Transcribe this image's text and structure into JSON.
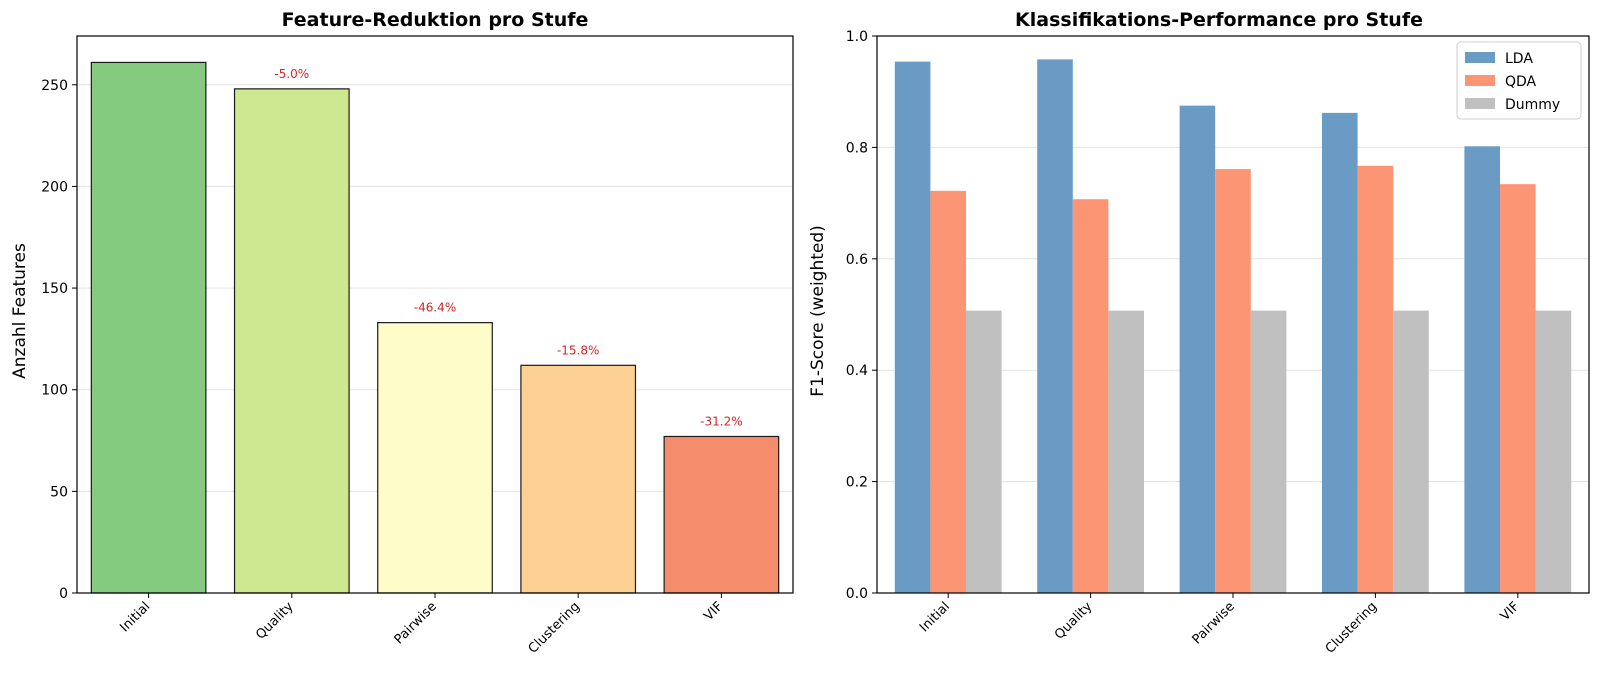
{
  "chart_data": [
    {
      "type": "bar",
      "title": "Feature-Reduktion pro Stufe",
      "xlabel": "",
      "ylabel": "Anzahl Features",
      "categories": [
        "Initial",
        "Quality",
        "Pairwise",
        "Clustering",
        "VIF"
      ],
      "values": [
        261,
        248,
        133,
        112,
        77
      ],
      "annotations": [
        "",
        "-5.0%",
        "-46.4%",
        "-15.8%",
        "-31.2%"
      ],
      "colors": [
        "#84ca7f",
        "#cde891",
        "#fefdc9",
        "#fdd093",
        "#f58c6c"
      ],
      "ylim": [
        0,
        274
      ],
      "yticks": [
        0,
        50,
        100,
        150,
        200,
        250
      ],
      "grid": "y",
      "annotation_color": "#d62728"
    },
    {
      "type": "bar",
      "title": "Klassifikations-Performance pro Stufe",
      "xlabel": "",
      "ylabel": "F1-Score (weighted)",
      "categories": [
        "Initial",
        "Quality",
        "Pairwise",
        "Clustering",
        "VIF"
      ],
      "series": [
        {
          "name": "LDA",
          "values": [
            0.954,
            0.958,
            0.875,
            0.862,
            0.802
          ],
          "color": "#6a9bc5"
        },
        {
          "name": "QDA",
          "values": [
            0.722,
            0.707,
            0.761,
            0.767,
            0.734
          ],
          "color": "#fc9574"
        },
        {
          "name": "Dummy",
          "values": [
            0.507,
            0.507,
            0.507,
            0.507,
            0.507
          ],
          "color": "#c0c0c0"
        }
      ],
      "ylim": [
        0,
        1.0
      ],
      "yticks": [
        "0.0",
        "0.2",
        "0.4",
        "0.6",
        "0.8",
        "1.0"
      ],
      "grid": "y",
      "legend": "top-right"
    }
  ]
}
